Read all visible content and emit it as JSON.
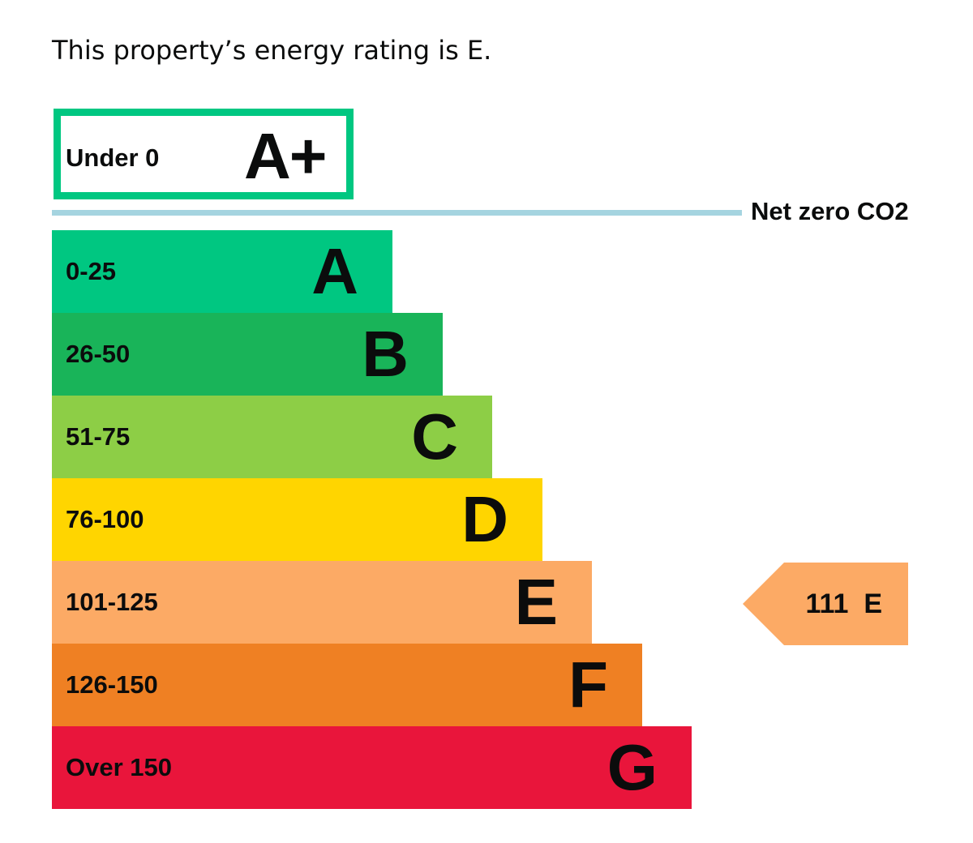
{
  "intro": "This property’s energy rating is E.",
  "chart_data": {
    "type": "bar",
    "aplus": {
      "range": "Under 0",
      "letter": "A+",
      "color": "#00c781"
    },
    "net_zero_label": "Net zero CO2",
    "bands": [
      {
        "range": "0-25",
        "letter": "A",
        "color": "#00c781",
        "text_color": "#0b0c0c"
      },
      {
        "range": "26-50",
        "letter": "B",
        "color": "#19b459",
        "text_color": "#0b0c0c"
      },
      {
        "range": "51-75",
        "letter": "C",
        "color": "#8dce46",
        "text_color": "#0b0c0c"
      },
      {
        "range": "76-100",
        "letter": "D",
        "color": "#ffd500",
        "text_color": "#0b0c0c"
      },
      {
        "range": "101-125",
        "letter": "E",
        "color": "#fcaa65",
        "text_color": "#0b0c0c"
      },
      {
        "range": "126-150",
        "letter": "F",
        "color": "#ef8023",
        "text_color": "#0b0c0c"
      },
      {
        "range": "Over 150",
        "letter": "G",
        "color": "#e9153b",
        "text_color": "#0b0c0c"
      }
    ],
    "current": {
      "value": 111,
      "letter": "E",
      "label": "111  E",
      "color": "#fcaa65"
    }
  }
}
